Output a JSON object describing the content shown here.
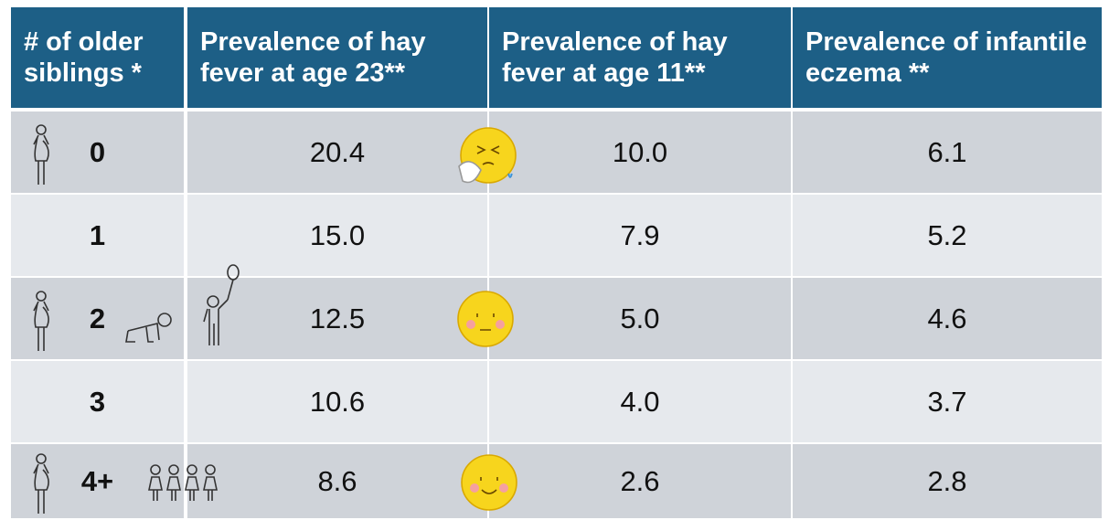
{
  "table": {
    "header": [
      "# of older siblings *",
      "Prevalence of hay fever at age 23**",
      "Prevalence of hay fever at age 11**",
      "Prevalence of infantile eczema **"
    ],
    "rows": [
      [
        "0",
        "20.4",
        "10.0",
        "6.1"
      ],
      [
        "1",
        "15.0",
        "7.9",
        "5.2"
      ],
      [
        "2",
        "12.5",
        "5.0",
        "4.6"
      ],
      [
        "3",
        "10.6",
        "4.0",
        "3.7"
      ],
      [
        "4+",
        "8.6",
        "2.6",
        "2.8"
      ]
    ]
  }
}
